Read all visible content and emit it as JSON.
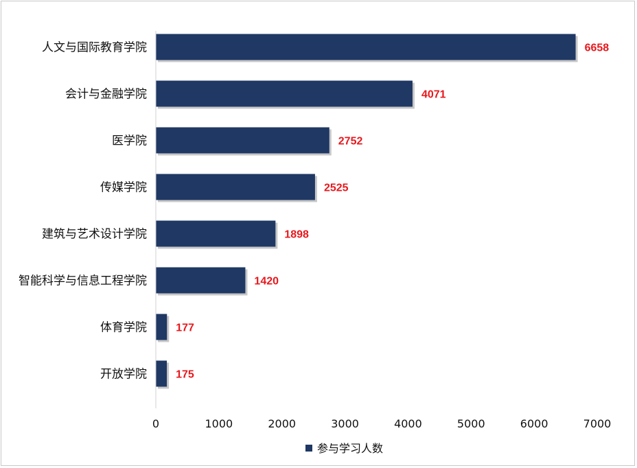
{
  "chart_data": {
    "type": "bar",
    "orientation": "horizontal",
    "categories": [
      "人文与国际教育学院",
      "会计与金融学院",
      "医学院",
      "传媒学院",
      "建筑与艺术设计学院",
      "智能科学与信息工程学院",
      "体育学院",
      "开放学院"
    ],
    "series": [
      {
        "name": "参与学习人数",
        "values": [
          6658,
          4071,
          2752,
          2525,
          1898,
          1420,
          177,
          175
        ]
      }
    ],
    "xlim": [
      0,
      7000
    ],
    "xticks": [
      "0",
      "1000",
      "2000",
      "3000",
      "4000",
      "5000",
      "6000",
      "7000"
    ],
    "grid": false,
    "legend_position": "bottom",
    "bar_color": "#1f3864",
    "label_color": "#e8171c"
  }
}
